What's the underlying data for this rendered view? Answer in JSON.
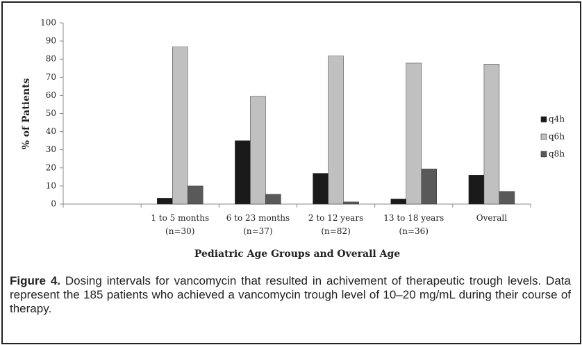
{
  "chart_data": {
    "type": "bar",
    "x_label": "Pediatric Age Groups and Overall Age",
    "y_label": "% of Patients",
    "categories": [
      null,
      [
        "1 to 5 months",
        "(n=30)"
      ],
      [
        "6 to 23 months",
        "(n=37)"
      ],
      [
        "2 to 12 years",
        "(n=82)"
      ],
      [
        "13 to 18 years",
        "(n=36)"
      ],
      [
        "Overall"
      ]
    ],
    "series": [
      {
        "name": "q4h",
        "color": "#1a1a1a",
        "values": [
          null,
          3.3,
          35,
          17,
          2.8,
          16
        ]
      },
      {
        "name": "q6h",
        "color": "#c0c0c0",
        "values": [
          null,
          86.7,
          59.5,
          81.7,
          77.8,
          77.3
        ]
      },
      {
        "name": "q8h",
        "color": "#595959",
        "values": [
          null,
          10,
          5.4,
          1.2,
          19.4,
          7
        ]
      }
    ],
    "ylim": [
      0,
      100
    ],
    "yticks": [
      0,
      10,
      20,
      30,
      40,
      50,
      60,
      70,
      80,
      90,
      100
    ],
    "grid": false,
    "legend": "right"
  },
  "caption": {
    "label": "Figure 4.",
    "text": "Dosing intervals for vancomycin that resulted in achivement of therapeutic trough levels. Data represent the 185 patients who achieved a vancomycin trough level of 10–20 mg/mL during their course of therapy."
  }
}
